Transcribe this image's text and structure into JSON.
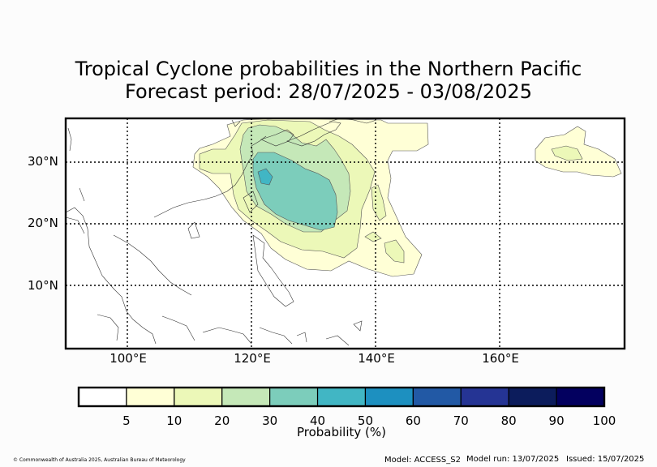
{
  "title_line1": "Tropical Cyclone probabilities in the Northern Pacific",
  "title_line2": "Forecast period: 28/07/2025 - 03/08/2025",
  "map": {
    "lat_labels": [
      "30°N",
      "20°N",
      "10°N"
    ],
    "lon_labels": [
      "100°E",
      "120°E",
      "140°E",
      "160°E"
    ],
    "gridlines": "dotted",
    "contour_levels": [
      5,
      10,
      20,
      30,
      40,
      50,
      60,
      70,
      80,
      90,
      100
    ]
  },
  "colorbar": {
    "label": "Probability (%)",
    "ticks": [
      "5",
      "10",
      "20",
      "30",
      "40",
      "50",
      "60",
      "70",
      "80",
      "90",
      "100"
    ],
    "colors": [
      "#ffffff",
      "#ffffd6",
      "#ecf8b8",
      "#c5e8b8",
      "#7ccdbb",
      "#41b6c4",
      "#1d90c0",
      "#2259a5",
      "#253494",
      "#0c1c5c",
      "#03005f"
    ]
  },
  "footer": {
    "copyright": "© Commonwealth of Australia 2025, Australian Bureau of Meteorology",
    "model": "Model: ACCESS_S2",
    "model_run": "Model run: 13/07/2025",
    "issued": "Issued: 15/07/2025"
  }
}
